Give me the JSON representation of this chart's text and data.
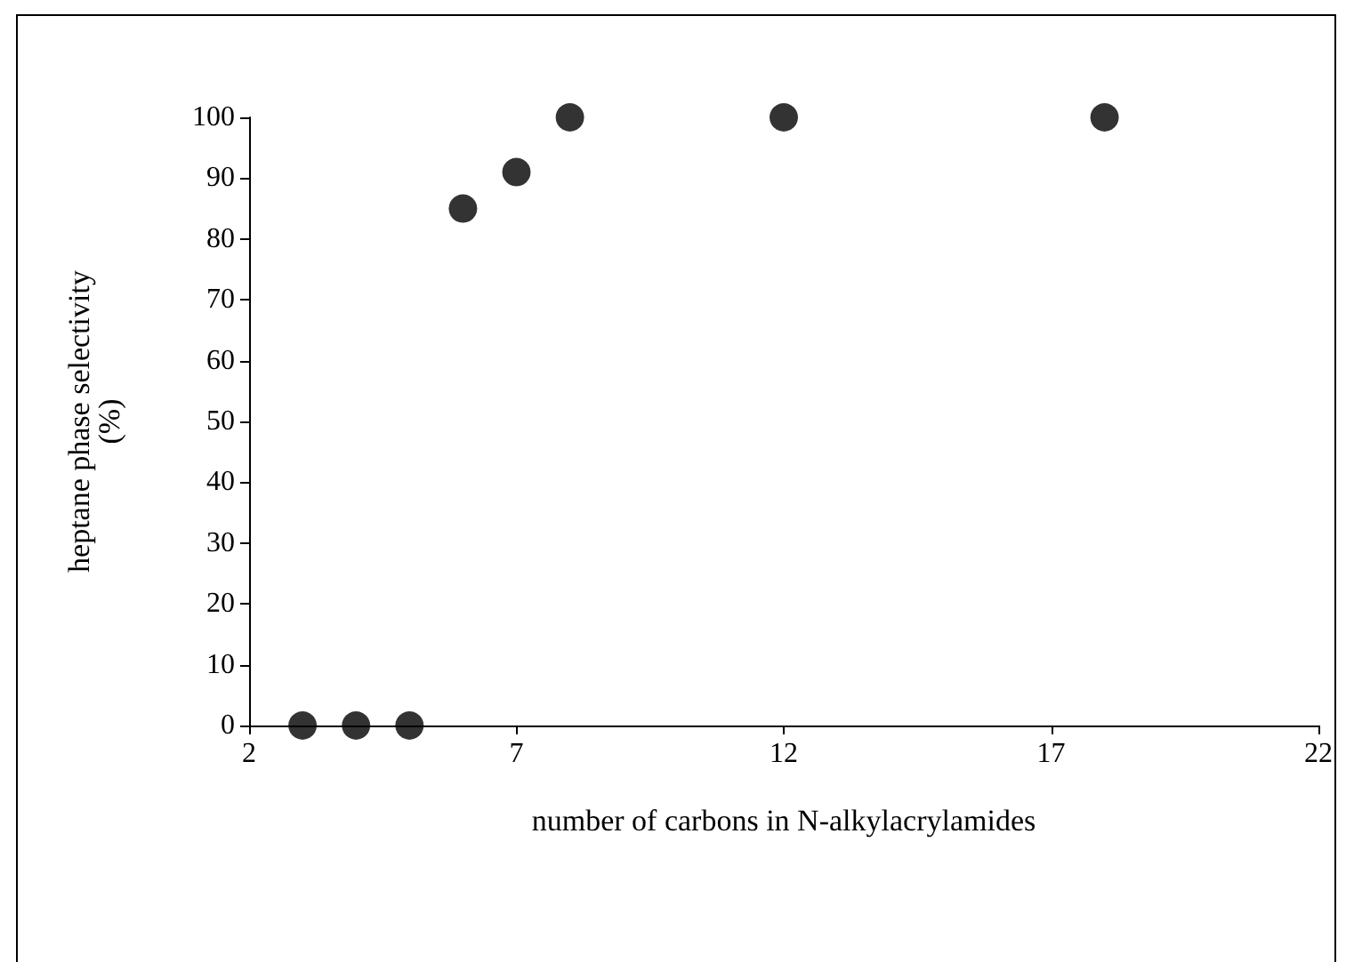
{
  "chart_data": {
    "type": "scatter",
    "xlabel": "number of carbons in N-alkylacrylamides",
    "ylabel": "heptane phase selectivity\n(%)",
    "x": [
      3,
      4,
      5,
      6,
      7,
      8,
      12,
      18
    ],
    "series": [
      {
        "color": "#000000",
        "values": [
          0,
          0,
          0,
          85,
          91,
          100,
          100,
          100
        ]
      }
    ],
    "xlim": [
      2,
      22
    ],
    "xticks": [
      2,
      7,
      12,
      17,
      22
    ],
    "ylim": [
      0,
      100
    ],
    "yticks": [
      0,
      10,
      20,
      30,
      40,
      50,
      60,
      70,
      80,
      90,
      100
    ],
    "marker": "circle",
    "grid": false
  }
}
